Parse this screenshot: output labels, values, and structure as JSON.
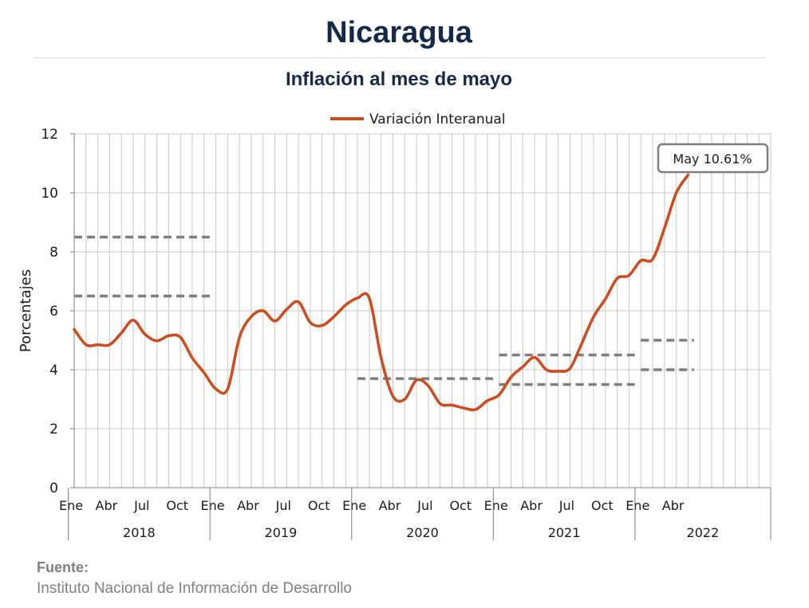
{
  "title": "Nicaragua",
  "subtitle": "Inflación al mes de mayo",
  "source": {
    "label": "Fuente:",
    "text": "Instituto Nacional de Información de  Desarrollo"
  },
  "colors": {
    "series": "#d04a1c",
    "grid": "#c8c8c8",
    "dash": "#7f7f7f",
    "title": "#13294b"
  },
  "chart_data": {
    "type": "line",
    "title": "",
    "ylabel": "Porcentajes",
    "xlabel": "",
    "ylim": [
      0,
      12
    ],
    "yticks": [
      0,
      2,
      4,
      6,
      8,
      10,
      12
    ],
    "grid": true,
    "legend_position": "top-center",
    "x_month_labels": [
      "Ene",
      "Abr",
      "Jul",
      "Oct",
      "Ene",
      "Abr",
      "Jul",
      "Oct",
      "Ene",
      "Abr",
      "Jul",
      "Oct",
      "Ene",
      "Abr",
      "Jul",
      "Oct",
      "Ene",
      "Abr"
    ],
    "years": [
      "2018",
      "2019",
      "2020",
      "2021",
      "2022"
    ],
    "series": [
      {
        "name": "Variación Interanual",
        "values": [
          5.37,
          4.85,
          4.85,
          4.85,
          5.25,
          5.68,
          5.2,
          4.98,
          5.15,
          5.1,
          4.4,
          3.9,
          3.35,
          3.35,
          5.1,
          5.8,
          6.0,
          5.65,
          6.05,
          6.3,
          5.6,
          5.5,
          5.8,
          6.2,
          6.43,
          6.43,
          4.4,
          3.1,
          3.0,
          3.65,
          3.45,
          2.85,
          2.8,
          2.7,
          2.65,
          2.95,
          3.15,
          3.75,
          4.1,
          4.42,
          4.0,
          3.95,
          4.05,
          4.9,
          5.8,
          6.4,
          7.1,
          7.2,
          7.7,
          7.75,
          8.8,
          10.0,
          10.61
        ]
      }
    ],
    "reference_lines": [
      {
        "value": 8.5,
        "from": "2018-01",
        "to": "2018-12"
      },
      {
        "value": 6.5,
        "from": "2018-01",
        "to": "2018-12"
      },
      {
        "value": 3.7,
        "from": "2020-01",
        "to": "2020-12"
      },
      {
        "value": 4.5,
        "from": "2021-01",
        "to": "2021-12"
      },
      {
        "value": 3.5,
        "from": "2021-01",
        "to": "2021-12"
      },
      {
        "value": 5.0,
        "from": "2022-01",
        "to": "2022-05"
      },
      {
        "value": 4.0,
        "from": "2022-01",
        "to": "2022-05"
      }
    ],
    "annotation": {
      "label": "May 10.61%"
    }
  }
}
